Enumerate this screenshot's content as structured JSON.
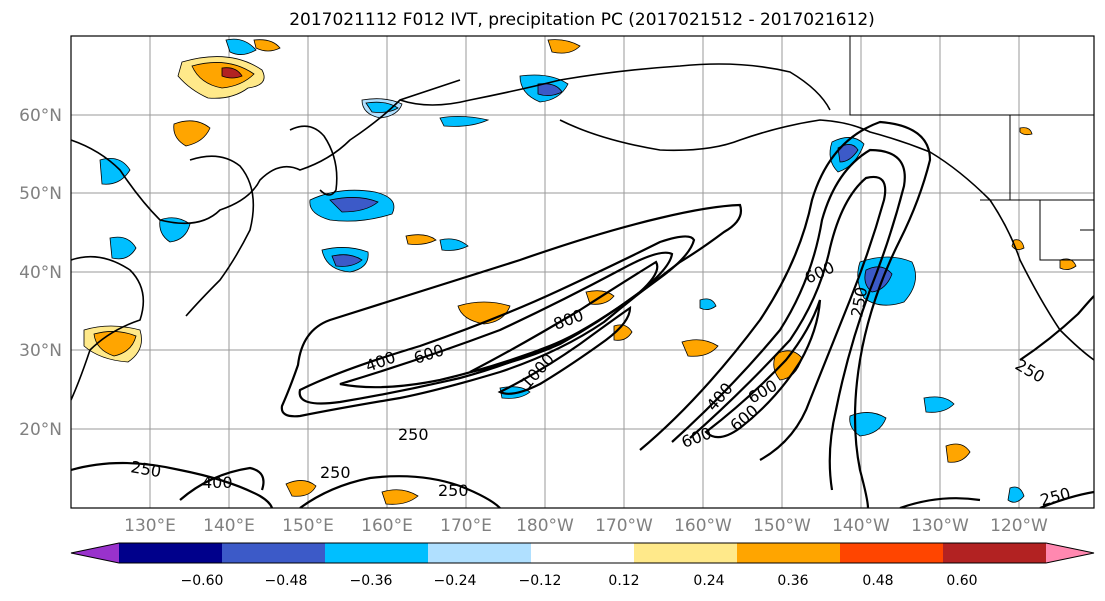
{
  "title": "2017021112 F012 IVT, precipitation PC (2017021512 - 2017021612)",
  "lat_labels": [
    "60°N",
    "50°N",
    "40°N",
    "30°N",
    "20°N"
  ],
  "lon_labels": [
    "130°E",
    "140°E",
    "150°E",
    "160°E",
    "170°E",
    "180°W",
    "170°W",
    "160°W",
    "150°W",
    "140°W",
    "130°W",
    "120°W"
  ],
  "contour_labels": [
    "400",
    "600",
    "800",
    "1000",
    "250",
    "250",
    "250",
    "400",
    "600",
    "250",
    "600",
    "400",
    "600",
    "600",
    "250",
    "250",
    "250"
  ],
  "colorbar": {
    "tick_labels": [
      "−0.60",
      "−0.48",
      "−0.36",
      "−0.24",
      "−0.12",
      "0.12",
      "0.24",
      "0.36",
      "0.48",
      "0.60"
    ],
    "colors": [
      "#9932cc",
      "#00008b",
      "#3c5ac8",
      "#00bfff",
      "#b0e0ff",
      "#ffffff",
      "#ffe98a",
      "#ffa500",
      "#ff4500",
      "#b22222",
      "#ff88b0"
    ]
  },
  "chart_data": {
    "type": "heatmap",
    "title": "2017021112 F012 IVT, precipitation PC (2017021512 - 2017021612)",
    "lon_range": [
      "120°E",
      "115°W"
    ],
    "lat_range": [
      "10°N",
      "70°N"
    ],
    "grid": true,
    "variables": [
      "IVT (contours)",
      "precipitation PC (shaded)"
    ],
    "ivt_contour_levels": [
      250,
      400,
      600,
      800,
      1000
    ],
    "shading_levels": [
      -0.6,
      -0.48,
      -0.36,
      -0.24,
      -0.12,
      0.12,
      0.24,
      0.36,
      0.48,
      0.6
    ],
    "colorbar_extend": "both"
  }
}
